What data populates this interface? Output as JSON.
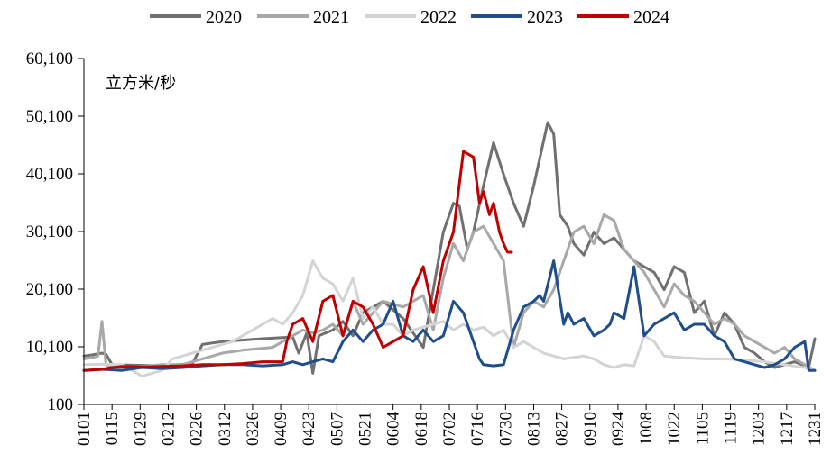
{
  "chart_data": {
    "type": "line",
    "ylabel": "立方米/秒",
    "ylim": [
      100,
      60100
    ],
    "yticks": [
      100,
      10100,
      20100,
      30100,
      40100,
      50100,
      60100
    ],
    "ytick_labels": [
      "100",
      "10,100",
      "20,100",
      "30,100",
      "40,100",
      "50,100",
      "60,100"
    ],
    "xlim": [
      1,
      365
    ],
    "xticks": [
      1,
      15,
      29,
      43,
      57,
      71,
      85,
      99,
      113,
      127,
      141,
      155,
      169,
      183,
      197,
      211,
      225,
      239,
      253,
      267,
      281,
      295,
      309,
      323,
      337,
      351,
      365
    ],
    "xtick_labels": [
      "0101",
      "0115",
      "0129",
      "0212",
      "0226",
      "0312",
      "0326",
      "0409",
      "0423",
      "0507",
      "0521",
      "0604",
      "0618",
      "0702",
      "0716",
      "0730",
      "0813",
      "0827",
      "0910",
      "0924",
      "1008",
      "1022",
      "1105",
      "1119",
      "1203",
      "1217",
      "1231"
    ],
    "grid": false,
    "legend_position": "top",
    "series": [
      {
        "name": "2020",
        "color": "#707070",
        "x": [
          1,
          5,
          10,
          12,
          15,
          40,
          55,
          60,
          70,
          90,
          105,
          108,
          112,
          115,
          118,
          120,
          125,
          130,
          135,
          140,
          150,
          160,
          170,
          175,
          180,
          185,
          188,
          192,
          195,
          200,
          205,
          210,
          215,
          220,
          225,
          232,
          235,
          238,
          242,
          245,
          250,
          255,
          260,
          265,
          270,
          275,
          280,
          285,
          290,
          295,
          300,
          305,
          310,
          315,
          320,
          325,
          330,
          335,
          340,
          345,
          350,
          355,
          362,
          365
        ],
        "y": [
          8500,
          8700,
          9000,
          8800,
          7000,
          6800,
          7200,
          10500,
          11000,
          11500,
          11800,
          9000,
          12500,
          5500,
          12000,
          12300,
          13000,
          14500,
          12000,
          16000,
          18000,
          15000,
          10000,
          20000,
          30000,
          35000,
          34500,
          27000,
          30000,
          38000,
          45500,
          40000,
          35000,
          31000,
          38000,
          49000,
          47000,
          33000,
          31000,
          28000,
          26000,
          30000,
          28000,
          29000,
          27000,
          25000,
          24000,
          23000,
          20000,
          24000,
          23000,
          16000,
          18000,
          12000,
          16000,
          14000,
          10000,
          9000,
          7500,
          6500,
          7000,
          7500,
          6500,
          11500
        ]
      },
      {
        "name": "2021",
        "color": "#a8a8a8",
        "x": [
          1,
          5,
          8,
          10,
          12,
          15,
          25,
          40,
          50,
          60,
          70,
          80,
          95,
          100,
          105,
          110,
          115,
          120,
          125,
          130,
          135,
          140,
          150,
          160,
          170,
          175,
          180,
          185,
          190,
          195,
          200,
          205,
          210,
          215,
          220,
          225,
          230,
          235,
          240,
          245,
          250,
          255,
          260,
          265,
          270,
          275,
          280,
          285,
          290,
          295,
          300,
          305,
          310,
          315,
          320,
          325,
          330,
          335,
          340,
          345,
          350,
          355,
          360,
          365
        ],
        "y": [
          8000,
          8200,
          8500,
          14500,
          7000,
          6500,
          6500,
          7000,
          7000,
          8000,
          9000,
          9500,
          10000,
          11000,
          12000,
          13000,
          12500,
          13000,
          14000,
          12000,
          18000,
          14000,
          18000,
          17000,
          19000,
          13000,
          22000,
          28000,
          25000,
          30000,
          31000,
          28000,
          25000,
          10000,
          16000,
          18000,
          17000,
          20000,
          25000,
          30000,
          31000,
          28000,
          33000,
          32000,
          27000,
          25000,
          23000,
          20000,
          17000,
          21000,
          19000,
          18000,
          16000,
          14000,
          15000,
          14000,
          12000,
          11000,
          10000,
          9000,
          10000,
          8000,
          7000,
          6000
        ]
      },
      {
        "name": "2022",
        "color": "#d4d4d4",
        "x": [
          1,
          10,
          20,
          30,
          40,
          45,
          55,
          65,
          75,
          85,
          95,
          100,
          105,
          110,
          115,
          120,
          125,
          130,
          135,
          140,
          145,
          150,
          155,
          160,
          165,
          170,
          175,
          180,
          185,
          190,
          195,
          200,
          205,
          210,
          215,
          220,
          230,
          240,
          250,
          255,
          260,
          265,
          270,
          275,
          280,
          285,
          290,
          300,
          310,
          320,
          330,
          340,
          350,
          360,
          365
        ],
        "y": [
          7000,
          7100,
          7000,
          5000,
          6000,
          8000,
          9000,
          10000,
          11000,
          13000,
          15000,
          14000,
          16000,
          19000,
          25000,
          22000,
          21000,
          18000,
          22000,
          15000,
          17000,
          14000,
          14000,
          12000,
          13000,
          13500,
          14000,
          14500,
          13000,
          14000,
          13000,
          13500,
          12000,
          13000,
          10000,
          11000,
          9000,
          8000,
          8500,
          8000,
          7000,
          6500,
          7000,
          6800,
          12000,
          11000,
          8500,
          8200,
          8000,
          8000,
          7800,
          7500,
          7000,
          6500,
          6000
        ]
      },
      {
        "name": "2023",
        "color": "#1f4e8c",
        "x": [
          1,
          10,
          20,
          30,
          40,
          50,
          60,
          70,
          80,
          90,
          100,
          105,
          110,
          115,
          120,
          125,
          130,
          135,
          140,
          145,
          150,
          155,
          160,
          165,
          170,
          175,
          180,
          185,
          190,
          195,
          198,
          200,
          205,
          210,
          215,
          220,
          225,
          228,
          230,
          235,
          240,
          242,
          245,
          250,
          255,
          260,
          263,
          265,
          270,
          275,
          280,
          285,
          290,
          295,
          300,
          305,
          310,
          315,
          320,
          325,
          330,
          335,
          340,
          345,
          350,
          355,
          360,
          362,
          365
        ],
        "y": [
          6000,
          6200,
          6000,
          6500,
          6300,
          6500,
          6800,
          7000,
          7000,
          6800,
          7000,
          7500,
          7000,
          7500,
          8000,
          7500,
          11000,
          13000,
          11000,
          13000,
          14000,
          18000,
          12000,
          11000,
          13000,
          11000,
          12000,
          18000,
          16000,
          11000,
          8000,
          7000,
          6800,
          7000,
          13000,
          17000,
          18000,
          19000,
          18000,
          25000,
          14000,
          16000,
          14000,
          15000,
          12000,
          13000,
          14000,
          16000,
          15000,
          24000,
          12000,
          14000,
          15000,
          16000,
          13000,
          14000,
          14000,
          12000,
          11000,
          8000,
          7500,
          7000,
          6500,
          7000,
          8000,
          10000,
          11000,
          6000,
          6000
        ]
      },
      {
        "name": "2024",
        "color": "#c00000",
        "x": [
          1,
          10,
          15,
          20,
          30,
          40,
          50,
          60,
          70,
          80,
          90,
          100,
          102,
          105,
          110,
          115,
          120,
          125,
          130,
          135,
          140,
          145,
          150,
          155,
          160,
          165,
          170,
          175,
          180,
          185,
          190,
          195,
          198,
          200,
          203,
          205,
          208,
          210,
          212,
          214
        ],
        "y": [
          6000,
          6200,
          6500,
          6700,
          6600,
          6700,
          6800,
          7000,
          7000,
          7200,
          7500,
          7500,
          11000,
          14000,
          15000,
          11000,
          18000,
          19000,
          12000,
          18000,
          17000,
          14000,
          10000,
          11000,
          12000,
          20000,
          24000,
          16000,
          25000,
          30000,
          44000,
          43000,
          35000,
          37000,
          33000,
          35000,
          30000,
          28000,
          26500,
          26500
        ]
      }
    ]
  }
}
